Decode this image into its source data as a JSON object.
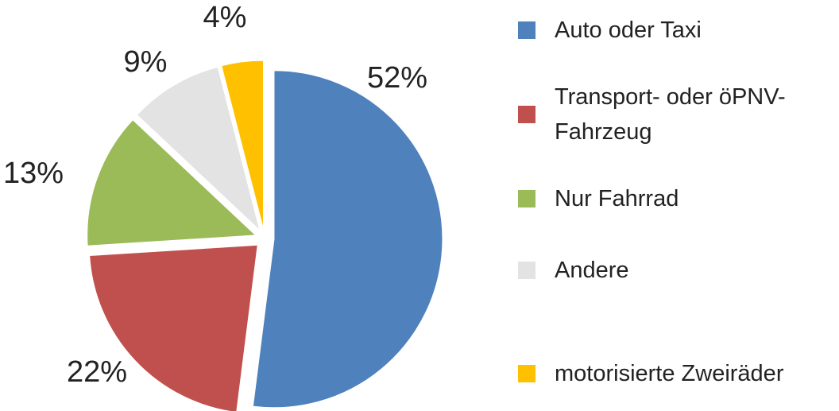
{
  "chart_data": {
    "type": "pie",
    "categories": [
      "Auto oder Taxi",
      "Transport- oder öPNV-Fahrzeug",
      "Nur Fahrrad",
      "Andere",
      "motorisierte Zweiräder"
    ],
    "values": [
      52,
      22,
      13,
      9,
      4
    ],
    "value_labels": [
      "52%",
      "22%",
      "13%",
      "9%",
      "4%"
    ],
    "colors": [
      "#4f81bd",
      "#c0504d",
      "#9bbb59",
      "#e3e3e3",
      "#ffc000"
    ],
    "legend": "right"
  }
}
